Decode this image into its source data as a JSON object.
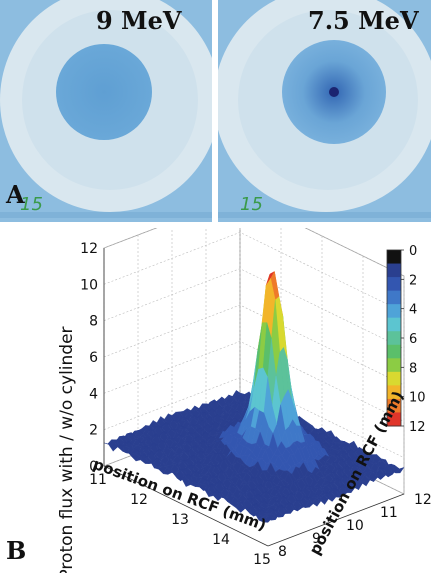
{
  "panel_a": {
    "letter": "A",
    "films": [
      {
        "energy_label": "9 MeV",
        "annotation": "15"
      },
      {
        "energy_label": "7.5 MeV",
        "annotation": "15"
      }
    ]
  },
  "panel_b": {
    "letter": "B",
    "chart_data": {
      "type": "surface3d",
      "zlabel": "Proton flux with / w/o cylinder",
      "xlabel": "position on RCF (mm)",
      "ylabel": "position on RCF (mm)",
      "x_ticks": [
        "11",
        "12",
        "13",
        "14",
        "15"
      ],
      "y_ticks": [
        "8",
        "9",
        "10",
        "11",
        "12"
      ],
      "z_ticks": [
        "0",
        "2",
        "4",
        "6",
        "8",
        "10",
        "12"
      ],
      "xlim": [
        11,
        15
      ],
      "ylim": [
        8,
        12
      ],
      "zlim": [
        0,
        12
      ],
      "peak": {
        "x": 13.2,
        "y": 10.3,
        "z": 11.3
      },
      "baseline": 1.3,
      "colorbar": {
        "ticks": [
          "0",
          "2",
          "4",
          "6",
          "8",
          "10",
          "12"
        ],
        "colors": [
          "#111111",
          "#2a3f8f",
          "#3356b0",
          "#3f78c8",
          "#4fa3d8",
          "#5cc5d0",
          "#5cc29a",
          "#5bbf6a",
          "#8ccc44",
          "#d9d930",
          "#f2b52a",
          "#ee7a2a",
          "#e0352a"
        ]
      }
    }
  }
}
